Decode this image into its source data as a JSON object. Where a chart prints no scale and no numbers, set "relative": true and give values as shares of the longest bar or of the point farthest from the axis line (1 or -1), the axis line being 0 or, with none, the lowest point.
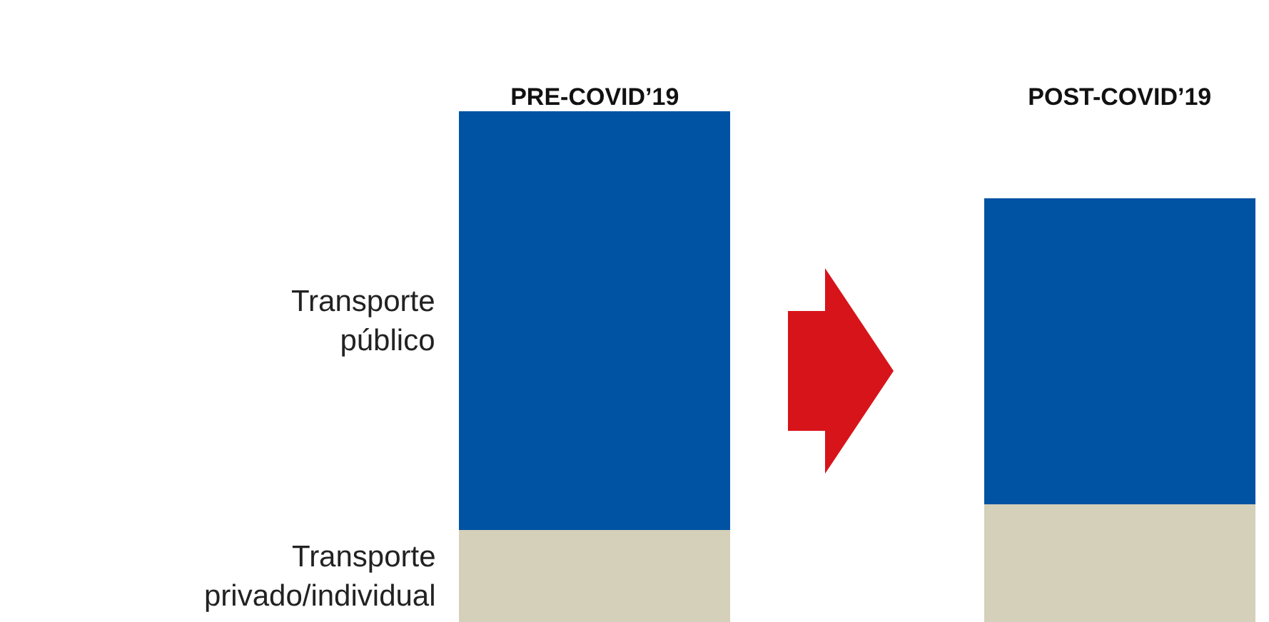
{
  "chart_data": {
    "type": "bar",
    "stacked": true,
    "relative": true,
    "legend": false,
    "categories": [
      "PRE-COVID’19",
      "POST-COVID’19"
    ],
    "series": [
      {
        "name": "Transporte privado/individual",
        "color": "#d4d0b9",
        "values": [
          0.18,
          0.23
        ]
      },
      {
        "name": "Transporte público",
        "color": "#0052a3",
        "values": [
          0.82,
          0.6
        ]
      }
    ]
  }
}
